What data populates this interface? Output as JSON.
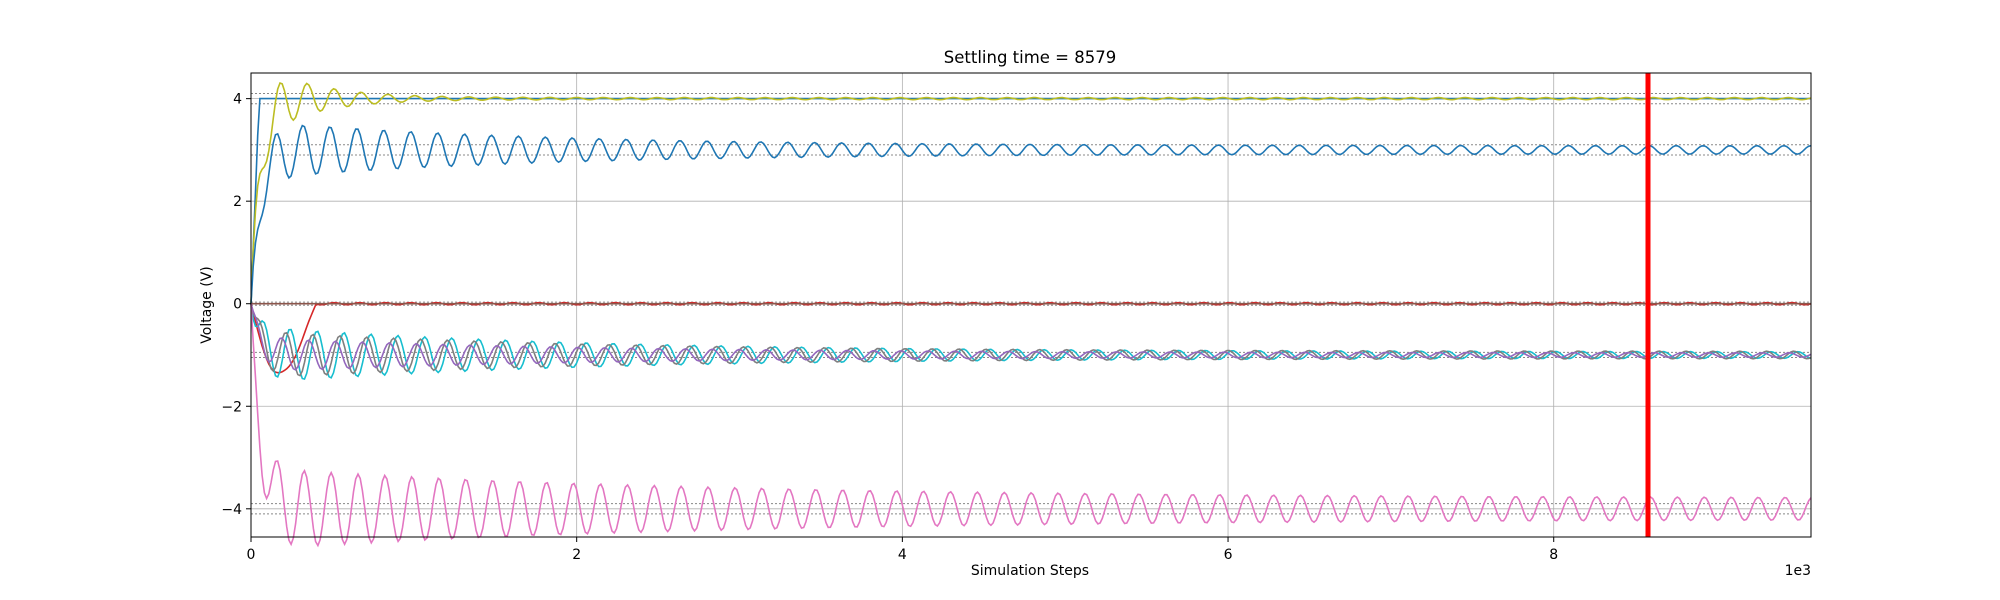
{
  "chart_data": {
    "type": "line",
    "title": "Settling time = 8579",
    "xlabel": "Simulation Steps",
    "ylabel": "Voltage (V)",
    "x_multiplier_label": "1e3",
    "xlim": [
      0,
      9.58
    ],
    "ylim": [
      -4.55,
      4.5
    ],
    "xticks": [
      0,
      2,
      4,
      6,
      8
    ],
    "xtick_labels": [
      "0",
      "2",
      "4",
      "6",
      "8"
    ],
    "yticks": [
      -4,
      -2,
      0,
      2,
      4
    ],
    "ytick_labels": [
      "−4",
      "−2",
      "0",
      "2",
      "4"
    ],
    "grid": true,
    "settling_marker": {
      "x": 8.579,
      "color": "#ff0000"
    },
    "tolerance_bands": [
      3.9,
      4.1,
      2.9,
      3.1,
      -0.95,
      -1.05,
      -3.9,
      -4.1,
      -0.03,
      0.03
    ],
    "series": [
      {
        "color": "#1f77b4",
        "target": 4.0,
        "start": 0.0,
        "kind": "step"
      },
      {
        "color": "#bcbd22",
        "target": 4.0,
        "start": 0.0,
        "kind": "rise",
        "amp": 0.8,
        "osc": 0.02,
        "rate": 3.0
      },
      {
        "color": "#1f77b4",
        "target": 3.0,
        "start": 0.0,
        "kind": "rise",
        "amp": 0.5,
        "osc": 0.08,
        "rate": 0.6
      },
      {
        "color": "#d62728",
        "target": 0.0,
        "start": 0.0,
        "kind": "dip",
        "amp": 1.8,
        "osc": 0.02,
        "rate": 1.5
      },
      {
        "color": "#8c564b",
        "target": 0.0,
        "start": 0.0,
        "kind": "flat"
      },
      {
        "color": "#17becf",
        "target": -1.0,
        "start": 0.0,
        "kind": "rise",
        "amp": 0.5,
        "osc": 0.06,
        "rate": 0.5
      },
      {
        "color": "#7f7f7f",
        "target": -1.0,
        "start": 0.0,
        "kind": "rise",
        "amp": 0.4,
        "osc": 0.07,
        "rate": 0.5
      },
      {
        "color": "#9467bd",
        "target": -1.0,
        "start": 0.0,
        "kind": "rise",
        "amp": 0.3,
        "osc": 0.04,
        "rate": 0.5
      },
      {
        "color": "#e377c2",
        "target": -4.0,
        "start": 0.0,
        "kind": "rise",
        "amp": 0.6,
        "osc": 0.2,
        "rate": 0.35
      }
    ]
  }
}
